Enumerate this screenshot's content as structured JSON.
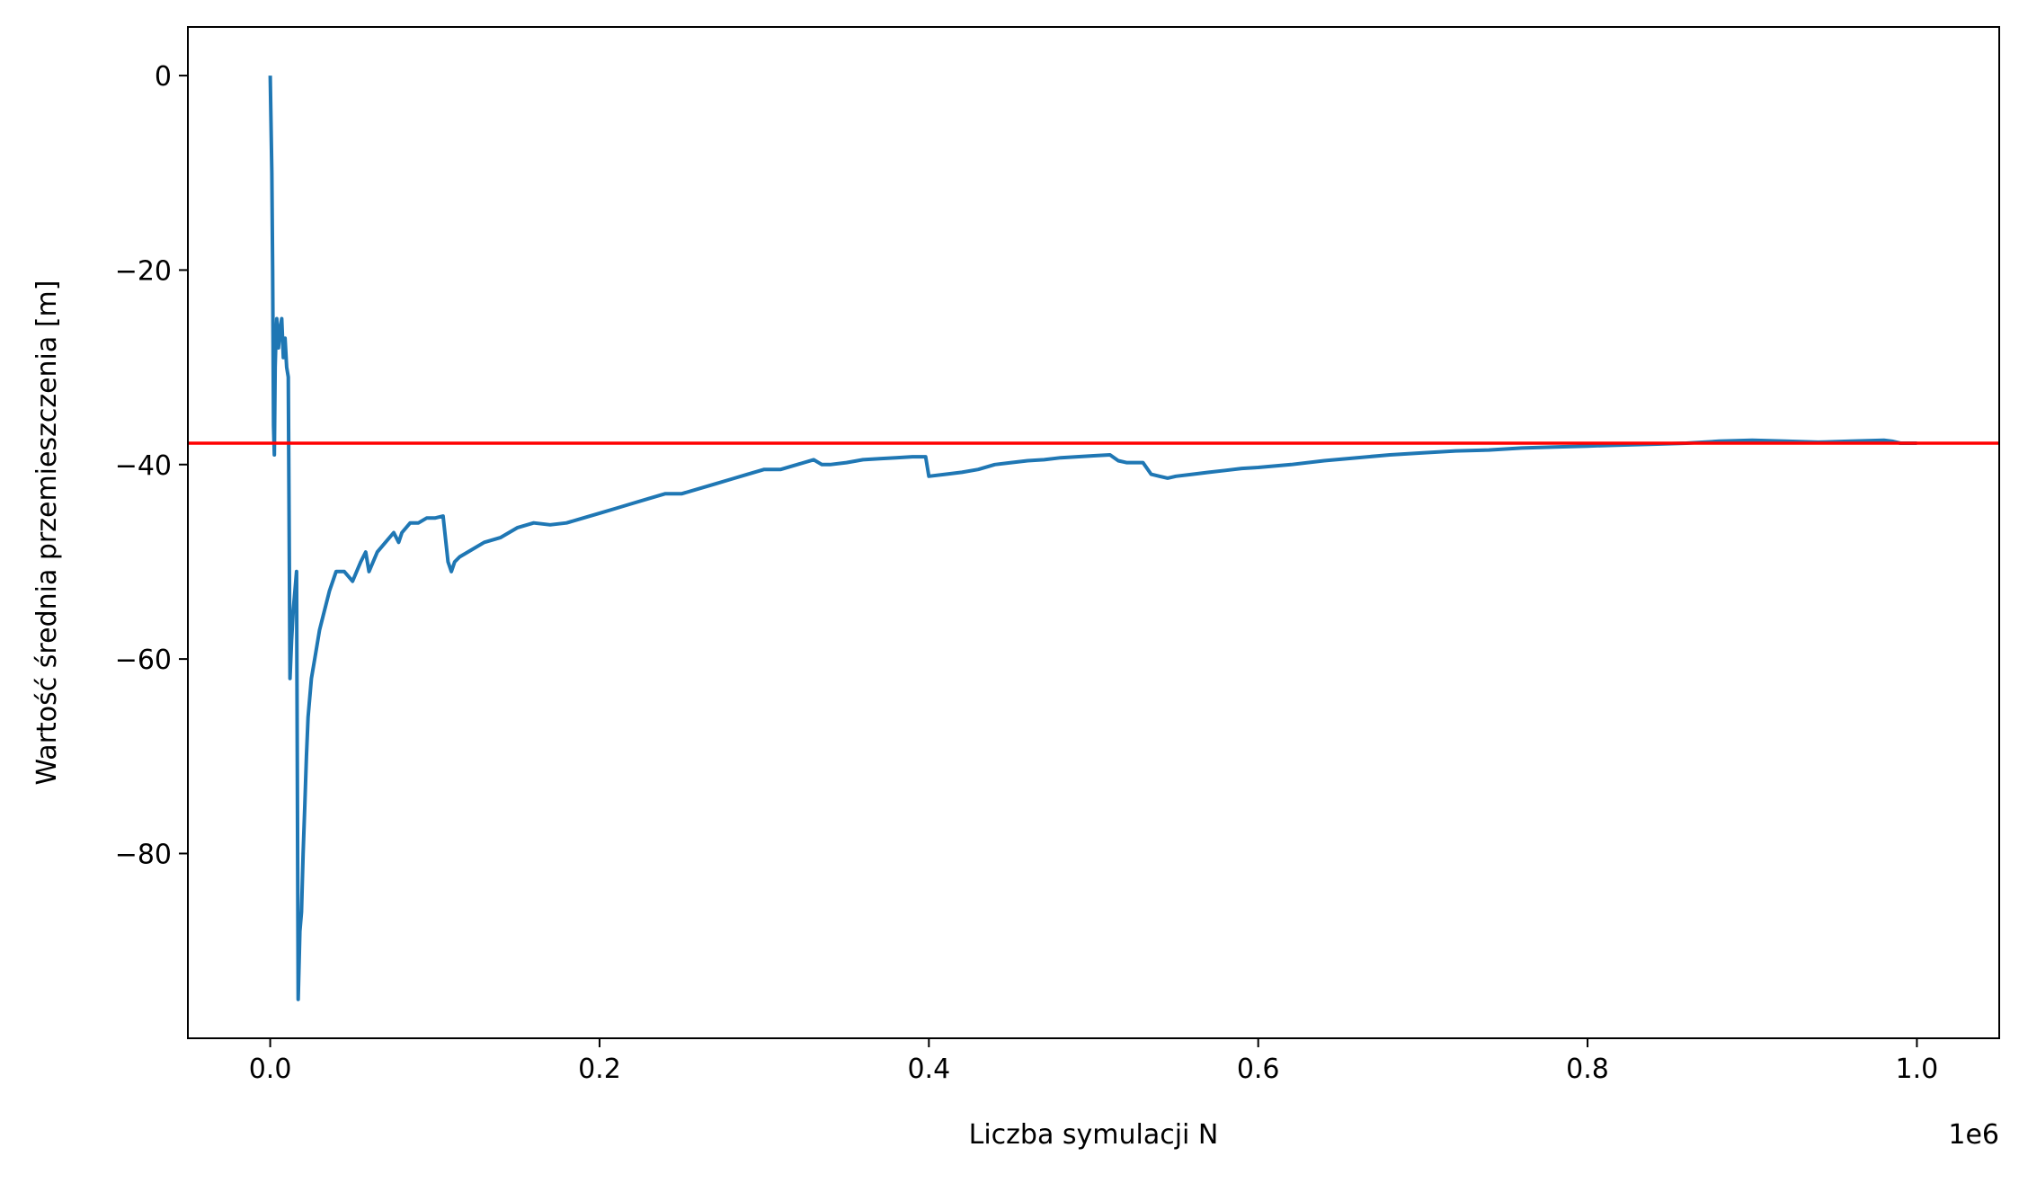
{
  "chart_data": {
    "type": "line",
    "title": "",
    "xlabel": "Liczba symulacji N",
    "ylabel": "Wartość średnia przemieszczenia [m]",
    "x_offset_label": "1e6",
    "xlim": [
      -50000,
      1050000
    ],
    "ylim": [
      -99,
      5
    ],
    "x_ticks": [
      0,
      200000,
      400000,
      600000,
      800000,
      1000000
    ],
    "x_tick_labels": [
      "0.0",
      "0.2",
      "0.4",
      "0.6",
      "0.8",
      "1.0"
    ],
    "y_ticks": [
      0,
      -20,
      -40,
      -60,
      -80
    ],
    "y_tick_labels": [
      "0",
      "−20",
      "−40",
      "−60",
      "−80"
    ],
    "grid": false,
    "legend": null,
    "reference_line": {
      "y": -37.8,
      "color": "#ff0000"
    },
    "series": [
      {
        "color": "#1f77b4",
        "x": [
          0,
          1000,
          1500,
          2000,
          2500,
          3000,
          3500,
          4000,
          5000,
          6000,
          7000,
          8000,
          9000,
          10000,
          11000,
          12000,
          12500,
          13000,
          14000,
          15000,
          16000,
          17000,
          18000,
          19000,
          20000,
          21000,
          22000,
          23000,
          25000,
          27000,
          30000,
          33000,
          36000,
          40000,
          45000,
          50000,
          55000,
          58000,
          60000,
          65000,
          70000,
          75000,
          78000,
          80000,
          85000,
          90000,
          95000,
          100000,
          105000,
          108000,
          110000,
          112000,
          115000,
          120000,
          130000,
          140000,
          150000,
          160000,
          170000,
          180000,
          190000,
          200000,
          210000,
          220000,
          230000,
          240000,
          250000,
          260000,
          270000,
          280000,
          290000,
          300000,
          310000,
          320000,
          330000,
          335000,
          340000,
          350000,
          360000,
          370000,
          380000,
          390000,
          398000,
          400000,
          410000,
          420000,
          430000,
          440000,
          450000,
          460000,
          470000,
          480000,
          490000,
          500000,
          510000,
          515000,
          520000,
          530000,
          535000,
          540000,
          545000,
          550000,
          560000,
          570000,
          580000,
          590000,
          600000,
          620000,
          640000,
          660000,
          680000,
          700000,
          720000,
          740000,
          760000,
          780000,
          800000,
          820000,
          840000,
          860000,
          880000,
          900000,
          920000,
          940000,
          960000,
          980000,
          985000,
          990000,
          1000000
        ],
        "y": [
          0,
          -10,
          -20,
          -36,
          -39,
          -30,
          -27,
          -25,
          -28,
          -26,
          -25,
          -29,
          -27,
          -30,
          -31,
          -62,
          -60,
          -58,
          -55,
          -53,
          -51,
          -95,
          -88,
          -86,
          -80,
          -75,
          -70,
          -66,
          -62,
          -60,
          -57,
          -55,
          -53,
          -51,
          -51,
          -52,
          -50,
          -49,
          -51,
          -49,
          -48,
          -47,
          -48,
          -47,
          -46,
          -46,
          -45.5,
          -45.5,
          -45.3,
          -50,
          -51,
          -50,
          -49.5,
          -49,
          -48,
          -47.5,
          -46.5,
          -46,
          -46.2,
          -46,
          -45.5,
          -45,
          -44.5,
          -44,
          -43.5,
          -43,
          -43,
          -42.5,
          -42,
          -41.5,
          -41,
          -40.5,
          -40.5,
          -40,
          -39.5,
          -40,
          -40,
          -39.8,
          -39.5,
          -39.4,
          -39.3,
          -39.2,
          -39.2,
          -41.2,
          -41,
          -40.8,
          -40.5,
          -40,
          -39.8,
          -39.6,
          -39.5,
          -39.3,
          -39.2,
          -39.1,
          -39,
          -39.6,
          -39.8,
          -39.8,
          -41,
          -41.2,
          -41.4,
          -41.2,
          -41,
          -40.8,
          -40.6,
          -40.4,
          -40.3,
          -40,
          -39.6,
          -39.3,
          -39,
          -38.8,
          -38.6,
          -38.5,
          -38.3,
          -38.2,
          -38.1,
          -38,
          -37.9,
          -37.8,
          -37.6,
          -37.5,
          -37.6,
          -37.7,
          -37.6,
          -37.5,
          -37.6,
          -37.8,
          -37.8
        ]
      }
    ]
  }
}
